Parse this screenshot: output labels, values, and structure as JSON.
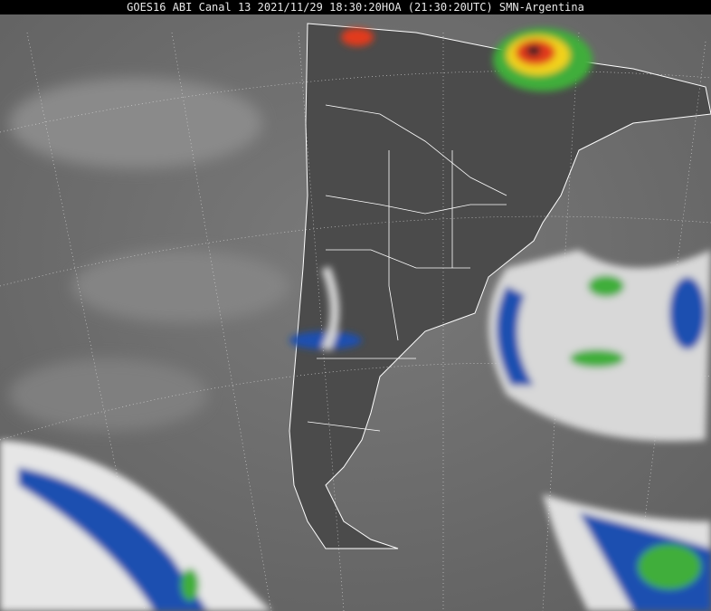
{
  "header": {
    "title": "GOES16 ABI Canal 13 2021/11/29 18:30:20HOA (21:30:20UTC) SMN-Argentina"
  },
  "image": {
    "satellite": "GOES16",
    "channel": "ABI Canal 13",
    "colors": {
      "background": "#6a6a6a",
      "land": "#4a4a4a",
      "cloud_cold": "#e6e6e6",
      "cloud_blue": "#1f4fb0",
      "cloud_green": "#3fae3a",
      "cloud_red": "#e23b1c",
      "cloud_yellow": "#f2d21b",
      "borders": "#ffffff"
    }
  }
}
